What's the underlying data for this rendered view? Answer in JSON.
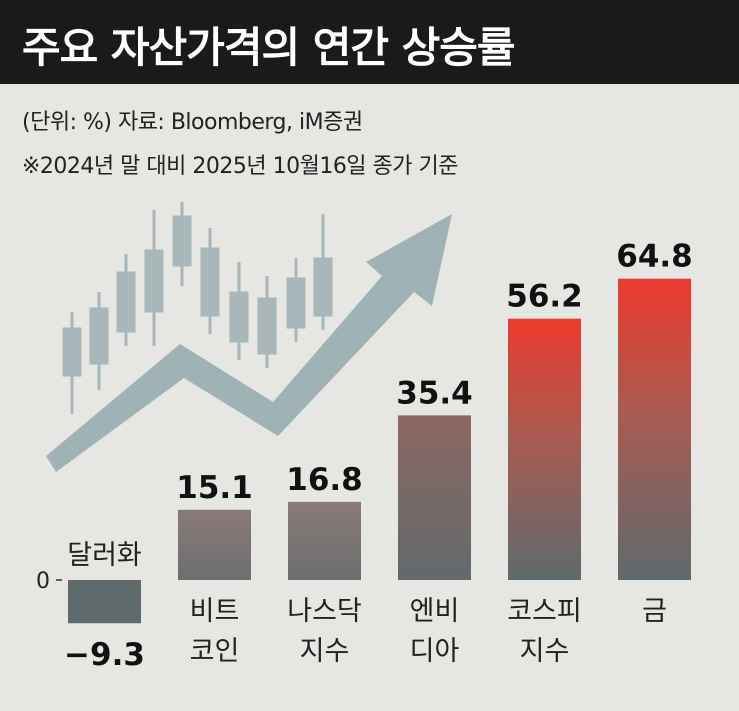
{
  "title": "주요 자산가격의 연간 상승률",
  "unit_source": "(단위: %)   자료: Bloomberg, iM증권",
  "note": "※2024년 말 대비 2025년 10월16일 종가 기준",
  "chart_data": {
    "type": "bar",
    "categories": [
      [
        "달러화"
      ],
      [
        "비트",
        "코인"
      ],
      [
        "나스닥",
        "지수"
      ],
      [
        "엔비",
        "디아"
      ],
      [
        "코스피",
        "지수"
      ],
      [
        "금"
      ]
    ],
    "values": [
      -9.3,
      15.1,
      16.8,
      35.4,
      56.2,
      64.8
    ],
    "value_labels": [
      "−9.3",
      "15.1",
      "16.8",
      "35.4",
      "56.2",
      "64.8"
    ],
    "y_tick_labels": [
      "0"
    ],
    "colors": {
      "negative": "#5f6a6c",
      "neutral": "#7f7f7f",
      "neutral_top": "#8c6f6c",
      "hot_top": "#e8392e",
      "hot_bottom": "#5f6a6c"
    }
  }
}
